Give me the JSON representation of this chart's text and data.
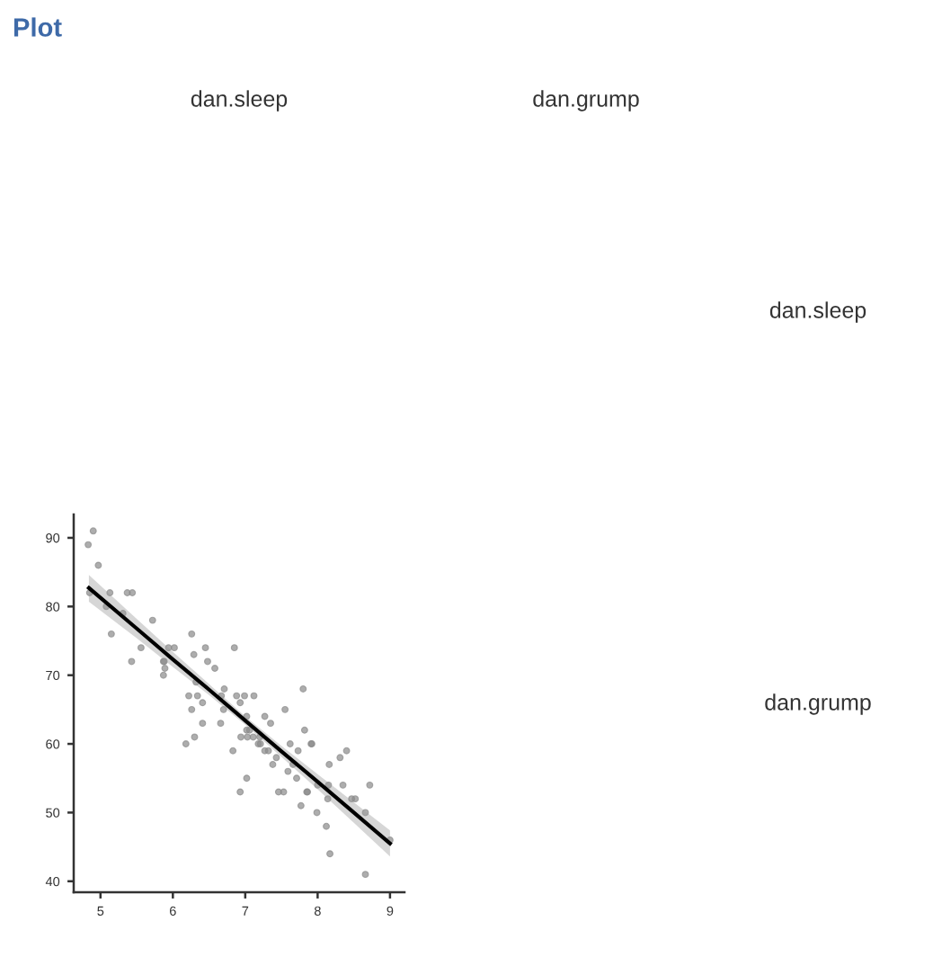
{
  "chart_data": {
    "type": "scatter",
    "title": "Plot",
    "annotations": [
      "dan.sleep",
      "dan.grump",
      "dan.sleep",
      "dan.grump"
    ],
    "xlim": [
      4.63,
      9.2
    ],
    "ylim": [
      38.4,
      93.4
    ],
    "xticks": [
      5,
      6,
      7,
      8,
      9
    ],
    "yticks": [
      40,
      50,
      60,
      70,
      80,
      90
    ],
    "series": [
      {
        "color": "#8a8a8a",
        "marker": "circle",
        "x": [
          4.83,
          4.9,
          4.97,
          4.85,
          5.13,
          5.08,
          5.15,
          5.31,
          5.37,
          5.44,
          5.43,
          5.56,
          5.72,
          5.87,
          5.88,
          5.89,
          5.87,
          5.94,
          6.02,
          6.26,
          6.29,
          6.45,
          6.48,
          6.58,
          6.22,
          6.34,
          6.26,
          6.41,
          6.71,
          6.67,
          6.7,
          6.32,
          6.85,
          6.88,
          6.99,
          7.12,
          6.93,
          7.8,
          7.55,
          6.41,
          6.66,
          6.3,
          6.18,
          6.83,
          7.02,
          7.02,
          7.06,
          6.94,
          7.03,
          7.11,
          7.2,
          7.18,
          7.21,
          7.27,
          7.32,
          7.27,
          7.35,
          7.43,
          7.38,
          7.62,
          7.73,
          7.82,
          7.92,
          7.91,
          7.66,
          7.59,
          7.71,
          7.02,
          6.93,
          7.46,
          7.53,
          7.86,
          7.85,
          7.77,
          7.99,
          8.0,
          8.16,
          8.15,
          8.14,
          8.31,
          8.4,
          8.35,
          8.47,
          8.52,
          8.72,
          8.66,
          8.12,
          8.17,
          8.66,
          9.0
        ],
        "values": [
          89,
          91,
          86,
          82,
          82,
          80,
          76,
          79,
          82,
          82,
          72,
          74,
          78,
          72,
          72,
          71,
          70,
          74,
          74,
          76,
          73,
          74,
          72,
          71,
          67,
          67,
          65,
          66,
          68,
          67,
          65,
          69,
          74,
          67,
          67,
          67,
          66,
          68,
          65,
          63,
          63,
          61,
          60,
          59,
          64,
          62,
          62,
          61,
          61,
          61,
          61,
          60,
          60,
          59,
          59,
          64,
          63,
          58,
          57,
          60,
          59,
          62,
          60,
          60,
          57,
          56,
          55,
          55,
          53,
          53,
          53,
          53,
          53,
          51,
          50,
          54,
          57,
          54,
          52,
          58,
          59,
          54,
          52,
          52,
          54,
          50,
          48,
          44,
          41,
          46
        ]
      },
      {
        "type": "line",
        "color": "#000000",
        "line_style": "solid",
        "x": [
          4.84,
          5.5,
          6.0,
          6.5,
          7.0,
          7.5,
          8.0,
          8.5,
          9.0
        ],
        "values": [
          82.7,
          76.8,
          72.3,
          67.9,
          63.4,
          58.9,
          54.5,
          50.0,
          45.5
        ],
        "lower": [
          80.7,
          75.4,
          71.2,
          67.1,
          62.8,
          58.1,
          53.4,
          48.5,
          43.6
        ],
        "upper": [
          84.6,
          78.2,
          73.4,
          68.7,
          64.0,
          59.7,
          55.6,
          51.5,
          47.4
        ]
      }
    ]
  }
}
